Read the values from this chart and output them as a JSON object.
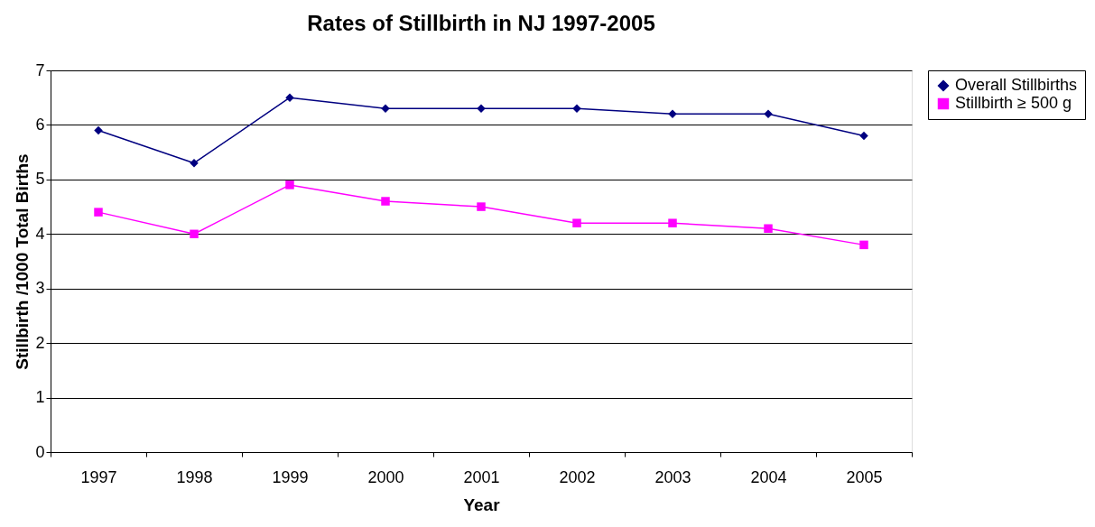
{
  "chart_data": {
    "type": "line",
    "title": "Rates of Stillbirth in NJ 1997-2005",
    "xlabel": "Year",
    "ylabel": "Stillbirth /1000 Total Births",
    "categories": [
      "1997",
      "1998",
      "1999",
      "2000",
      "2001",
      "2002",
      "2003",
      "2004",
      "2005"
    ],
    "series": [
      {
        "name": "Overall Stillbirths",
        "color": "#000080",
        "marker": "diamond",
        "values": [
          5.9,
          5.3,
          6.5,
          6.3,
          6.3,
          6.3,
          6.2,
          6.2,
          5.8
        ]
      },
      {
        "name": "Stillbirth ≥ 500 g",
        "color": "#ff00ff",
        "marker": "square",
        "values": [
          4.4,
          4.0,
          4.9,
          4.6,
          4.5,
          4.2,
          4.2,
          4.1,
          3.8
        ]
      }
    ],
    "ylim": [
      0,
      7
    ],
    "yticks": [
      0,
      1,
      2,
      3,
      4,
      5,
      6,
      7
    ],
    "grid": "y",
    "legend": "right",
    "line_style": "solid"
  }
}
